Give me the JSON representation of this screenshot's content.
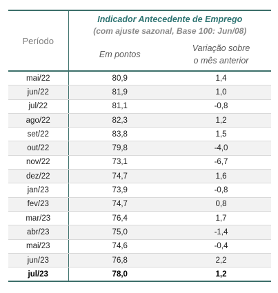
{
  "header": {
    "period_label": "Período",
    "title": "Indicador Antecedente de Emprego",
    "subtitle": "(com ajuste sazonal, Base 100: Jun/08)",
    "col_points": "Em pontos",
    "col_variation_line1": "Variação sobre",
    "col_variation_line2": "o mês anterior"
  },
  "rows": [
    {
      "period": "mai/22",
      "points": "80,9",
      "variation": "1,4"
    },
    {
      "period": "jun/22",
      "points": "81,9",
      "variation": "1,0"
    },
    {
      "period": "jul/22",
      "points": "81,1",
      "variation": "-0,8"
    },
    {
      "period": "ago/22",
      "points": "82,3",
      "variation": "1,2"
    },
    {
      "period": "set/22",
      "points": "83,8",
      "variation": "1,5"
    },
    {
      "period": "out/22",
      "points": "79,8",
      "variation": "-4,0"
    },
    {
      "period": "nov/22",
      "points": "73,1",
      "variation": "-6,7"
    },
    {
      "period": "dez/22",
      "points": "74,7",
      "variation": "1,6"
    },
    {
      "period": "jan/23",
      "points": "73,9",
      "variation": "-0,8"
    },
    {
      "period": "fev/23",
      "points": "74,7",
      "variation": "0,8"
    },
    {
      "period": "mar/23",
      "points": "76,4",
      "variation": "1,7"
    },
    {
      "period": "abr/23",
      "points": "75,0",
      "variation": "-1,4"
    },
    {
      "period": "mai/23",
      "points": "74,6",
      "variation": "-0,4"
    },
    {
      "period": "jun/23",
      "points": "76,8",
      "variation": "2,2"
    },
    {
      "period": "jul/23",
      "points": "78,0",
      "variation": "1,2"
    }
  ],
  "colors": {
    "accent": "#3c6f6a",
    "title": "#2d7371",
    "row_shade": "#f2f2f2"
  }
}
